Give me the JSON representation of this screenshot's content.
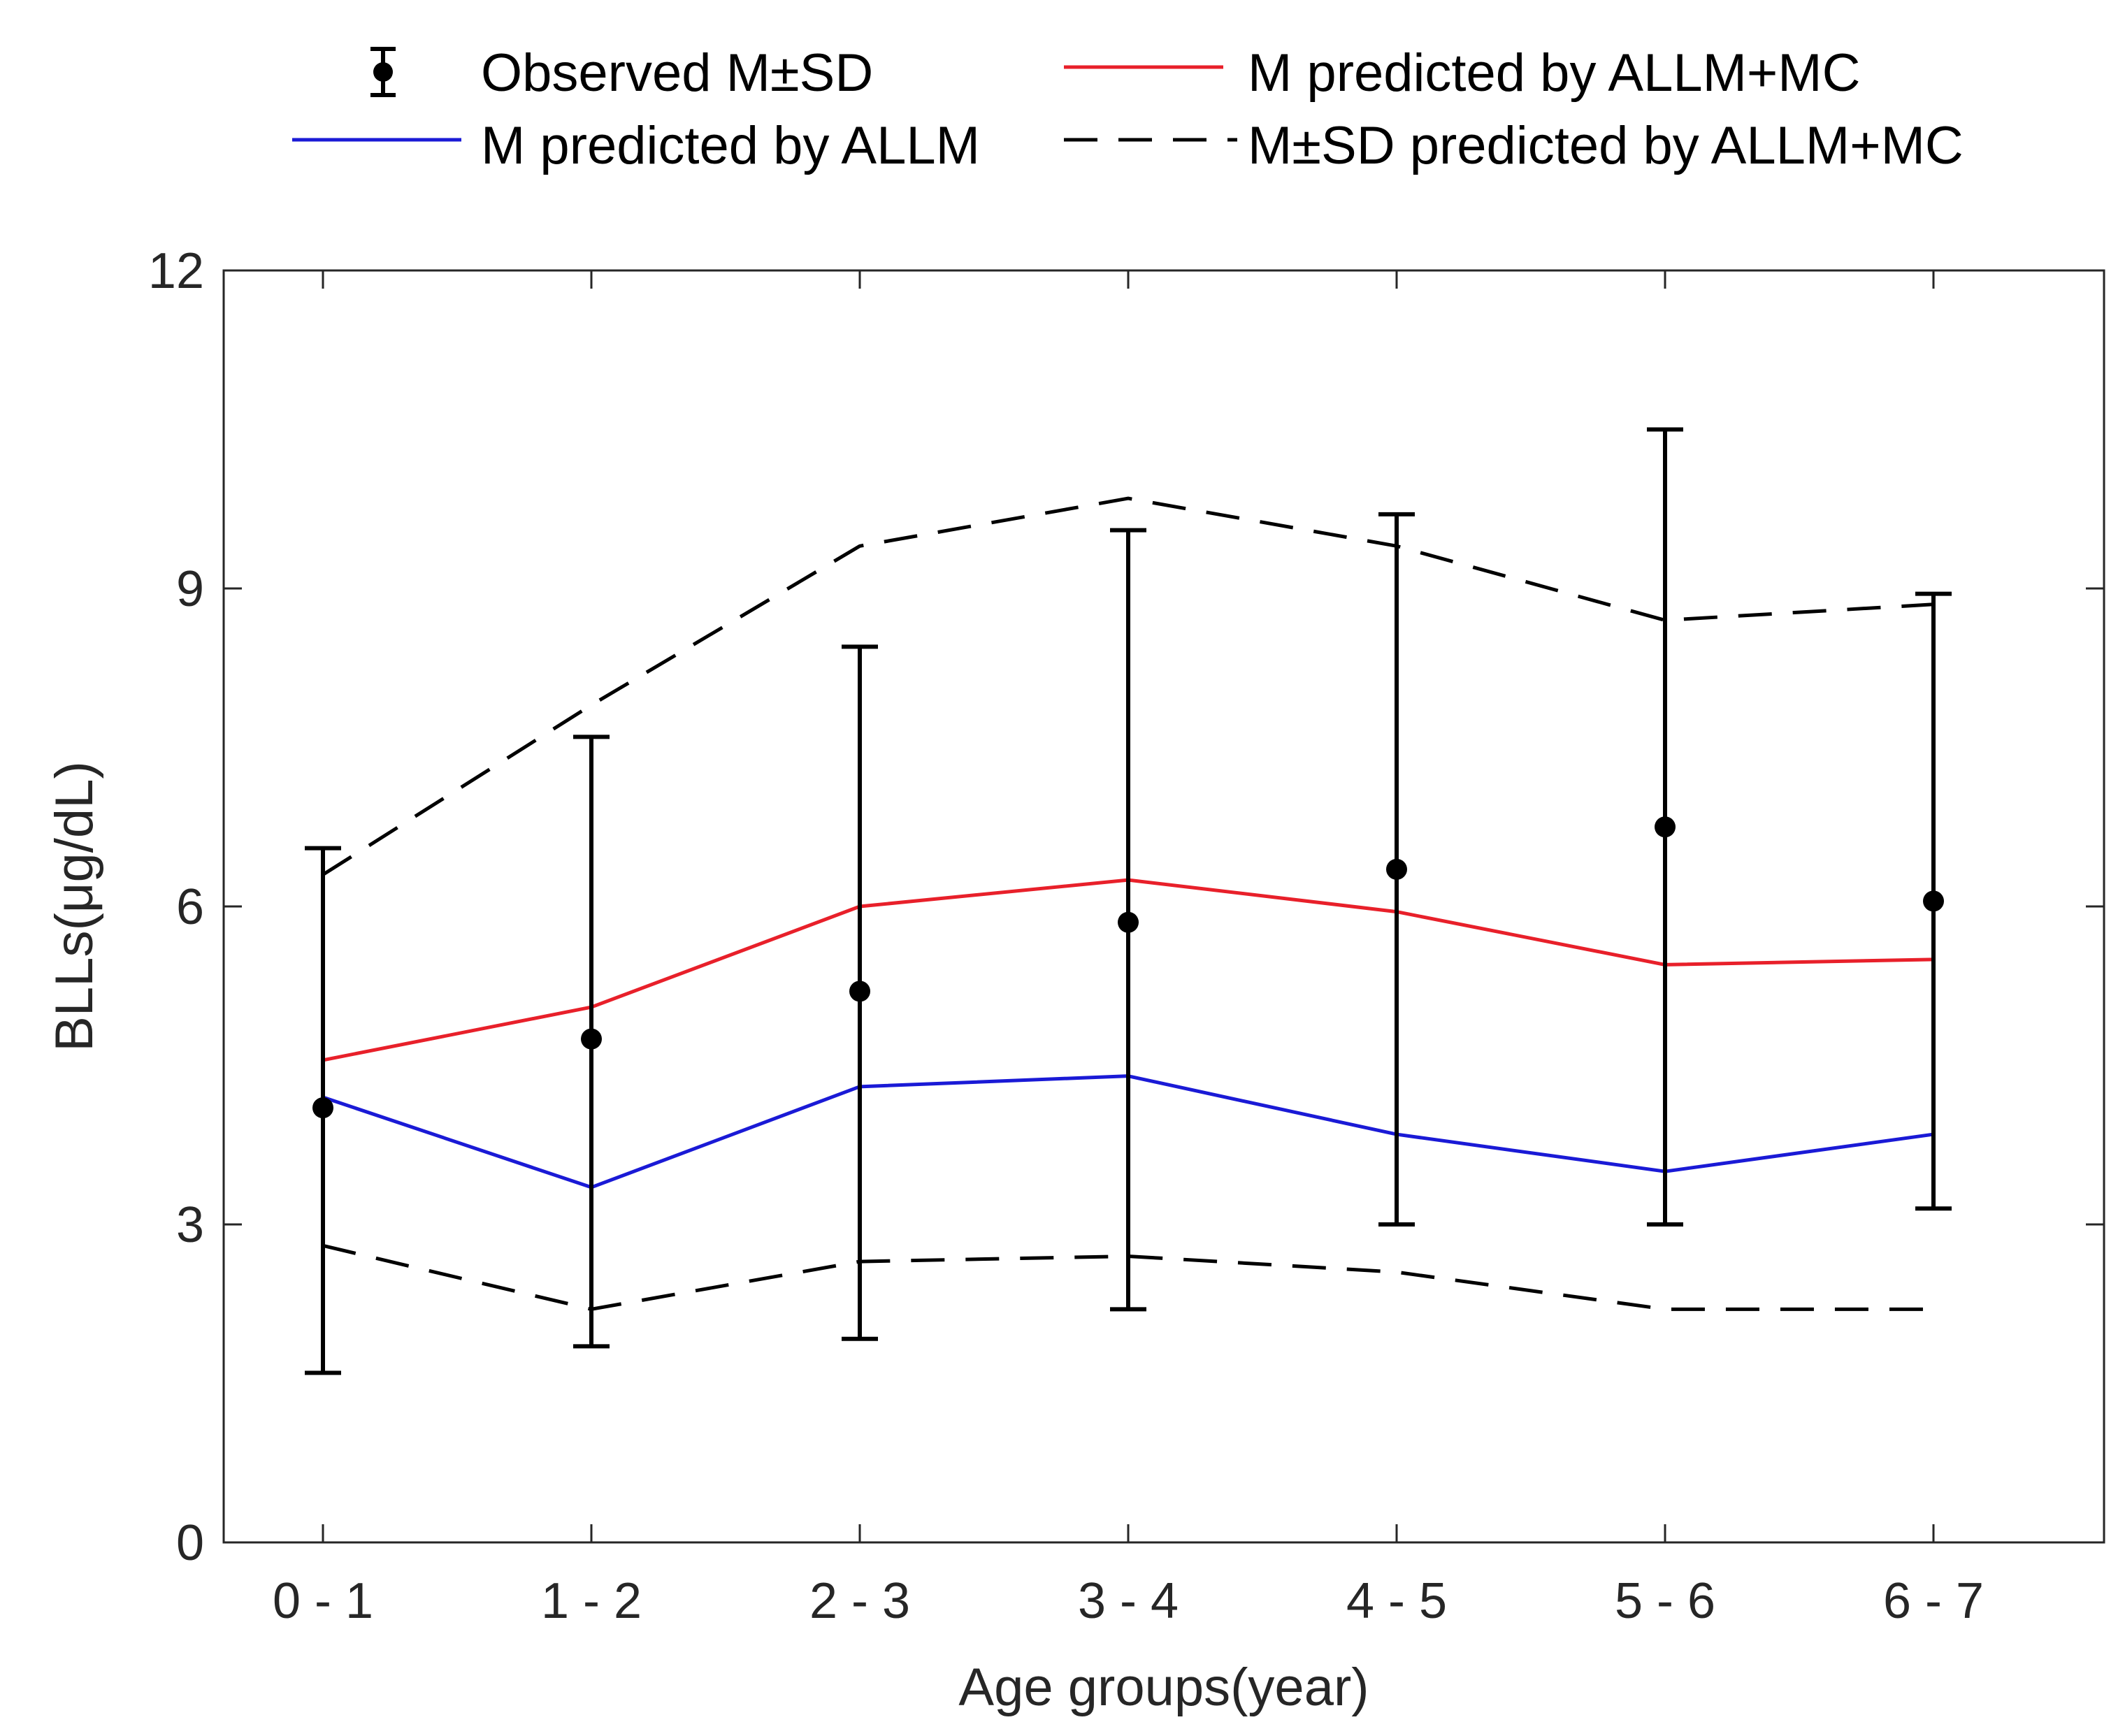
{
  "chart_data": {
    "type": "line",
    "title": "",
    "xlabel": "Age groups(year)",
    "ylabel": "BLLs(μg/dL)",
    "categories": [
      "0 - 1",
      "1 - 2",
      "2 - 3",
      "3 - 4",
      "4 - 5",
      "5 - 6",
      "6 - 7"
    ],
    "ylim": [
      0,
      12
    ],
    "yticks": [
      0,
      3,
      6,
      9,
      12
    ],
    "grid": false,
    "legend_position": "top",
    "observed": {
      "name": "Observed M±SD",
      "mean": [
        4.1,
        4.75,
        5.2,
        5.85,
        6.35,
        6.75,
        6.05
      ],
      "sd_low": [
        1.6,
        1.85,
        1.92,
        2.2,
        3.0,
        3.0,
        3.15
      ],
      "sd_high": [
        6.55,
        7.6,
        8.45,
        9.55,
        9.7,
        10.5,
        8.95
      ],
      "color": "#000000"
    },
    "series": [
      {
        "name": "M predicted by ALLM+MC",
        "values": [
          4.55,
          5.05,
          6.0,
          6.25,
          5.95,
          5.45,
          5.5
        ],
        "color": "#e8202a",
        "style": "solid"
      },
      {
        "name": "M predicted by ALLM",
        "values": [
          4.2,
          3.35,
          4.3,
          4.4,
          3.85,
          3.5,
          3.85
        ],
        "color": "#1a1ad6",
        "style": "solid"
      },
      {
        "name": "M±SD predicted by ALLM+MC",
        "values": [
          6.3,
          7.9,
          9.4,
          9.85,
          9.4,
          8.7,
          8.85
        ],
        "color": "#000000",
        "style": "dashed",
        "band": "upper"
      },
      {
        "name": "M±SD predicted by ALLM+MC",
        "values": [
          2.8,
          2.2,
          2.65,
          2.7,
          2.55,
          2.2,
          2.2
        ],
        "color": "#000000",
        "style": "dashed",
        "band": "lower"
      }
    ],
    "legend": [
      {
        "label": "Observed M±SD",
        "kind": "errorbar"
      },
      {
        "label": "M predicted by ALLM+MC",
        "kind": "red-line"
      },
      {
        "label": "M predicted by ALLM",
        "kind": "blue-line"
      },
      {
        "label": "M±SD predicted by ALLM+MC",
        "kind": "dashed-line"
      }
    ]
  }
}
